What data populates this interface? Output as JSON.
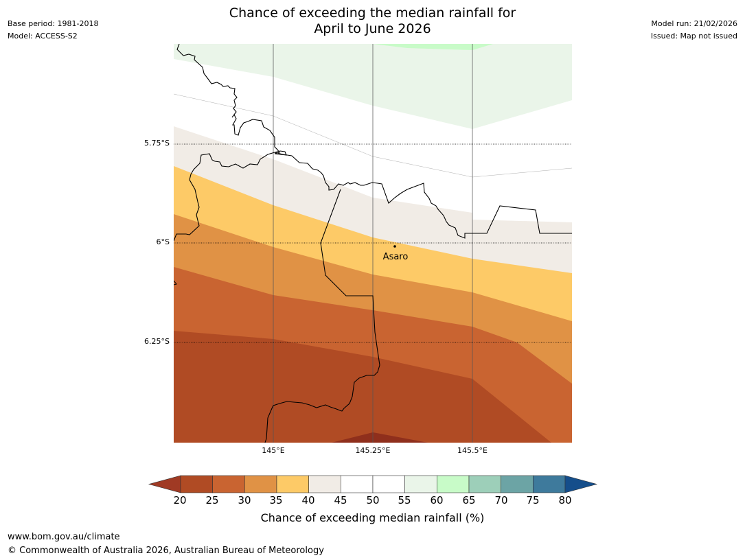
{
  "title": {
    "line1": "Chance of exceeding the median rainfall for",
    "line2": "April to June 2026"
  },
  "meta": {
    "base_period": "Base period: 1981-2018",
    "model": "Model: ACCESS-S2",
    "model_run": "Model run: 21/02/2026",
    "issued": "Issued: Map not issued"
  },
  "map": {
    "place_label": "Asaro",
    "lat_labels": [
      "5.75°S",
      "6°S",
      "6.25°S"
    ],
    "lon_labels": [
      "145°E",
      "145.25°E",
      "145.5°E"
    ],
    "colors": {
      "c20_25": "#b04b24",
      "c25_30": "#c96431",
      "c30_35": "#e09245",
      "c35_40": "#fdca67",
      "c40_45": "#f1ece6",
      "c45_55": "#ffffff",
      "c55_60": "#eaf5e9",
      "c60_65": "#c8fbc8",
      "below20": "#8f2f1c"
    }
  },
  "colorbar": {
    "ticks": [
      "20",
      "25",
      "30",
      "35",
      "40",
      "45",
      "50",
      "55",
      "60",
      "65",
      "70",
      "75",
      "80"
    ],
    "colors": [
      "#b04b24",
      "#c96431",
      "#e09245",
      "#fdca67",
      "#f1ece6",
      "#ffffff",
      "#ffffff",
      "#eaf5e9",
      "#c8fbc8",
      "#9dcfb9",
      "#6ca4a5",
      "#3e7a9c"
    ],
    "under_color": "#a03a24",
    "over_color": "#154e8b",
    "label": "Chance of exceeding median rainfall (%)"
  },
  "footer": {
    "url": "www.bom.gov.au/climate",
    "copyright": "© Commonwealth of Australia 2026, Australian Bureau of Meteorology"
  }
}
